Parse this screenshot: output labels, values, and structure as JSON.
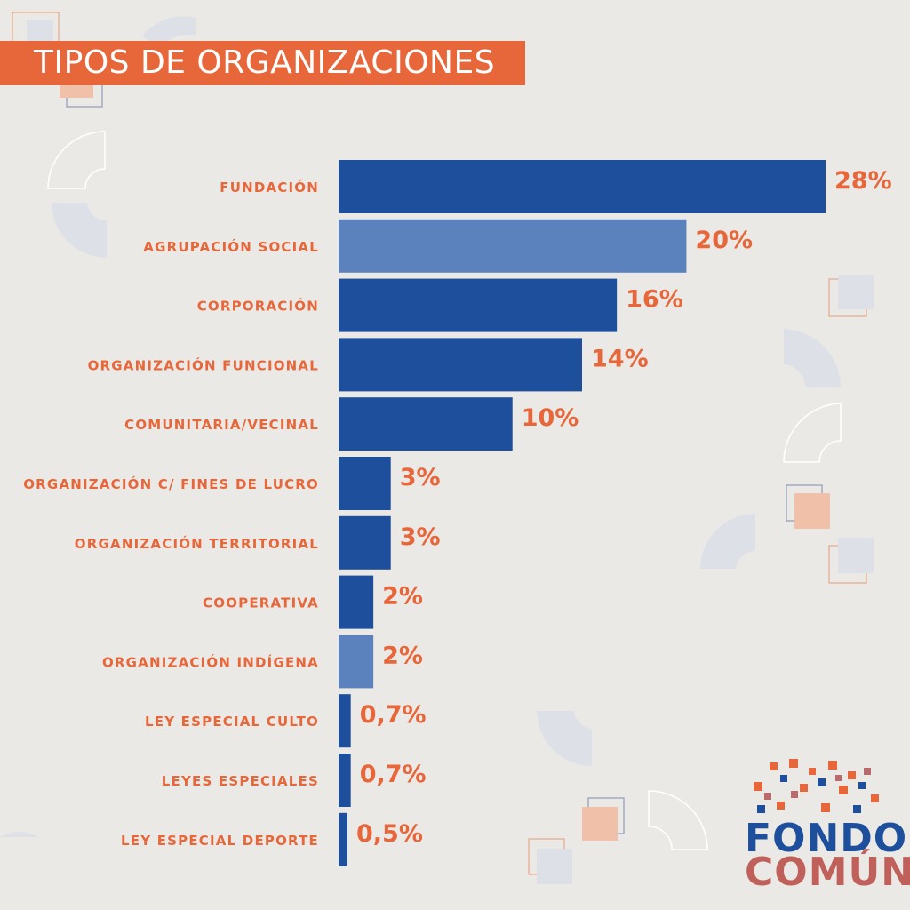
{
  "title": "TIPOS DE ORGANIZACIONES",
  "colors": {
    "accent": "#e8673a",
    "bar_dark": "#1d4f9c",
    "bar_light": "#5b82bd",
    "background": "#ebe9e5"
  },
  "chart_data": {
    "type": "bar",
    "orientation": "horizontal",
    "title": "TIPOS DE ORGANIZACIONES",
    "categories": [
      "FUNDACIÓN",
      "AGRUPACIÓN SOCIAL",
      "CORPORACIÓN",
      "ORGANIZACIÓN FUNCIONAL",
      "COMUNITARIA/VECINAL",
      "ORGANIZACIÓN C/ FINES DE LUCRO",
      "ORGANIZACIÓN TERRITORIAL",
      "COOPERATIVA",
      "ORGANIZACIÓN INDÍGENA",
      "LEY ESPECIAL CULTO",
      "LEYES ESPECIALES",
      "LEY ESPECIAL DEPORTE"
    ],
    "values": [
      28,
      20,
      16,
      14,
      10,
      3,
      3,
      2,
      2,
      0.7,
      0.7,
      0.5
    ],
    "value_labels": [
      "28%",
      "20%",
      "16%",
      "14%",
      "10%",
      "3%",
      "3%",
      "2%",
      "2%",
      "0,7%",
      "0,7%",
      "0,5%"
    ],
    "bar_shades": [
      "dark",
      "light",
      "dark",
      "dark",
      "dark",
      "dark",
      "dark",
      "dark",
      "light",
      "dark",
      "dark",
      "dark"
    ],
    "xlim": [
      0,
      28
    ],
    "grid": false,
    "legend": "none"
  },
  "logo": {
    "line1": "FONDO",
    "line2": "COMÚN"
  }
}
